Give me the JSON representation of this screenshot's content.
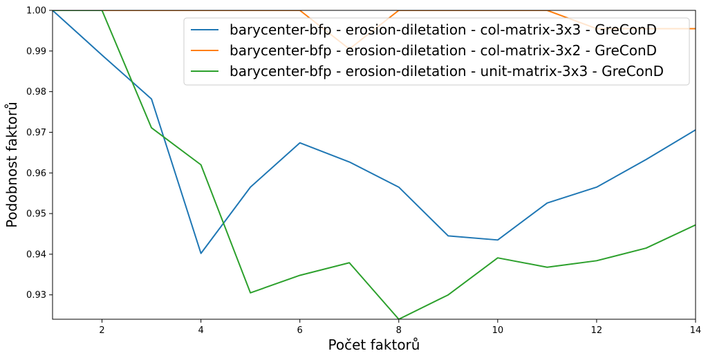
{
  "chart_data": {
    "type": "line",
    "title": "",
    "xlabel": "Počet faktorů",
    "ylabel": "Podobnost faktorů",
    "xlim": [
      1,
      14
    ],
    "ylim": [
      0.924,
      1.0
    ],
    "xticks": [
      2,
      4,
      6,
      8,
      10,
      12,
      14
    ],
    "xtick_labels": [
      "2",
      "4",
      "6",
      "8",
      "10",
      "12",
      "14"
    ],
    "yticks": [
      0.93,
      0.94,
      0.95,
      0.96,
      0.97,
      0.98,
      0.99,
      1.0
    ],
    "ytick_labels": [
      "0.93",
      "0.94",
      "0.95",
      "0.96",
      "0.97",
      "0.98",
      "0.99",
      "1.00"
    ],
    "grid": false,
    "legend_position": "top-right",
    "x": [
      1,
      2,
      3,
      4,
      5,
      6,
      7,
      8,
      9,
      10,
      11,
      12,
      13,
      14
    ],
    "series": [
      {
        "name": "barycenter-bfp - erosion-diletation - col-matrix-3x3 - GreConD",
        "color": "#1f77b4",
        "values": [
          1.0,
          0.989,
          0.9782,
          0.9402,
          0.9565,
          0.9674,
          0.9627,
          0.9565,
          0.9445,
          0.9435,
          0.9526,
          0.9565,
          0.9633,
          0.9706
        ]
      },
      {
        "name": "barycenter-bfp - erosion-diletation - col-matrix-3x2 - GreConD",
        "color": "#ff7f0e",
        "values": [
          1.0,
          1.0,
          1.0,
          1.0,
          1.0,
          1.0,
          0.9905,
          1.0,
          1.0,
          1.0,
          1.0,
          0.9955,
          0.9955,
          0.9955
        ]
      },
      {
        "name": "barycenter-bfp - erosion-diletation - unit-matrix-3x3 - GreConD",
        "color": "#2ca02c",
        "values": [
          1.0,
          1.0,
          0.9711,
          0.962,
          0.9305,
          0.9348,
          0.9379,
          0.924,
          0.93,
          0.9391,
          0.9368,
          0.9384,
          0.9415,
          0.9472
        ]
      }
    ]
  }
}
